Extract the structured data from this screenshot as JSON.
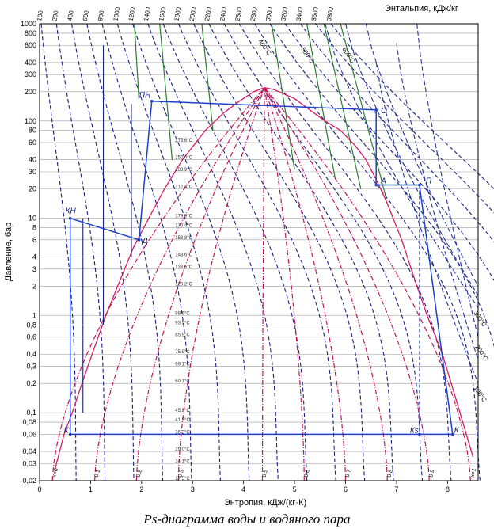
{
  "chart_data": {
    "type": "line",
    "title": "Ps-диаграмма воды и водяного пара",
    "xlabel": "Энтропия, кДж/(кг·К)",
    "ylabel": "Давление, бар",
    "top_axis_label": "Энтальпия, кДж/кг",
    "xlim": [
      0,
      8.6
    ],
    "ylim": [
      0.02,
      1000
    ],
    "y_scale": "log",
    "x_ticks": [
      "0",
      "1",
      "2",
      "3",
      "4",
      "5",
      "6",
      "7",
      "8"
    ],
    "y_ticks": [
      {
        "v": 1000,
        "label": "1000"
      },
      {
        "v": 800,
        "label": "800"
      },
      {
        "v": 600,
        "label": "600"
      },
      {
        "v": 400,
        "label": "400"
      },
      {
        "v": 300,
        "label": "300"
      },
      {
        "v": 200,
        "label": "200"
      },
      {
        "v": 100,
        "label": "100"
      },
      {
        "v": 80,
        "label": "80"
      },
      {
        "v": 60,
        "label": "60"
      },
      {
        "v": 40,
        "label": "40"
      },
      {
        "v": 30,
        "label": "30"
      },
      {
        "v": 20,
        "label": "20"
      },
      {
        "v": 10,
        "label": "10"
      },
      {
        "v": 8,
        "label": "8"
      },
      {
        "v": 6,
        "label": "6"
      },
      {
        "v": 4,
        "label": "4"
      },
      {
        "v": 3,
        "label": "3"
      },
      {
        "v": 2,
        "label": "2"
      },
      {
        "v": 1,
        "label": "1"
      },
      {
        "v": 0.8,
        "label": "0,8"
      },
      {
        "v": 0.6,
        "label": "0,6"
      },
      {
        "v": 0.4,
        "label": "0,4"
      },
      {
        "v": 0.3,
        "label": "0,3"
      },
      {
        "v": 0.2,
        "label": "0,2"
      },
      {
        "v": 0.1,
        "label": "0,1"
      },
      {
        "v": 0.08,
        "label": "0,08"
      },
      {
        "v": 0.06,
        "label": "0,06"
      },
      {
        "v": 0.04,
        "label": "0,04"
      },
      {
        "v": 0.03,
        "label": "0,03"
      },
      {
        "v": 0.02,
        "label": "0,02"
      }
    ],
    "enthalpy_ticks": [
      "100",
      "200",
      "400",
      "600",
      "800",
      "1000",
      "1200",
      "1400",
      "1600",
      "1800",
      "2000",
      "2200",
      "2400",
      "2600",
      "2800",
      "3000",
      "3200",
      "3400",
      "3600",
      "3800"
    ],
    "saturation_curve": {
      "liquid_s": [
        0.3,
        0.48,
        0.64,
        0.83,
        1.03,
        1.3,
        1.53,
        1.84,
        2.14,
        2.45,
        2.8,
        3.25,
        3.6,
        3.92,
        4.2,
        4.41
      ],
      "liquid_p": [
        0.026,
        0.06,
        0.1,
        0.2,
        0.4,
        1,
        2,
        5,
        10,
        20,
        40,
        80,
        120,
        160,
        200,
        220.6
      ],
      "vapor_s": [
        4.41,
        4.6,
        5.0,
        5.3,
        5.6,
        5.9,
        6.2,
        6.4,
        6.6,
        6.8,
        7.1,
        7.4,
        7.6,
        7.9,
        8.2,
        8.5
      ],
      "vapor_p": [
        220.6,
        210,
        170,
        130,
        100,
        80,
        55,
        40,
        25,
        15,
        6,
        2,
        1,
        0.4,
        0.12,
        0.035
      ]
    },
    "saturation_temperatures": [
      {
        "p": 60,
        "label": "275,6°C"
      },
      {
        "p": 40,
        "label": "250,4°C"
      },
      {
        "p": 30,
        "label": "233,9°C"
      },
      {
        "p": 20,
        "label": "212,4°C"
      },
      {
        "p": 10,
        "label": "179,9°C"
      },
      {
        "p": 8,
        "label": "170,4°C"
      },
      {
        "p": 6,
        "label": "158,8°C"
      },
      {
        "p": 4,
        "label": "143,6°C"
      },
      {
        "p": 3,
        "label": "133,5°C"
      },
      {
        "p": 2,
        "label": "120,2°C"
      },
      {
        "p": 1,
        "label": "99,6°C"
      },
      {
        "p": 0.8,
        "label": "93,5°C"
      },
      {
        "p": 0.6,
        "label": "85,9°C"
      },
      {
        "p": 0.4,
        "label": "75,9°C"
      },
      {
        "p": 0.3,
        "label": "69,1°C"
      },
      {
        "p": 0.2,
        "label": "60,1°C"
      },
      {
        "p": 0.1,
        "label": "45,8°C"
      },
      {
        "p": 0.08,
        "label": "41,5°C"
      },
      {
        "p": 0.06,
        "label": "36,2°C"
      },
      {
        "p": 0.04,
        "label": "29,0°C"
      },
      {
        "p": 0.03,
        "label": "24,1°C"
      },
      {
        "p": 0.02,
        "label": "17,5°C"
      }
    ],
    "dryness_lines": [
      {
        "label": "x=0",
        "s_bottom": 0.25
      },
      {
        "label": "0,1",
        "s_bottom": 1.08
      },
      {
        "label": "0,2",
        "s_bottom": 1.9
      },
      {
        "label": "0,3",
        "s_bottom": 2.72
      },
      {
        "label": "0,5",
        "s_bottom": 4.37
      },
      {
        "label": "0,6",
        "s_bottom": 5.19
      },
      {
        "label": "0,7",
        "s_bottom": 6.0
      },
      {
        "label": "0,8",
        "s_bottom": 6.82
      },
      {
        "label": "0,9",
        "s_bottom": 7.64
      },
      {
        "label": "x=1",
        "s_bottom": 8.45
      }
    ],
    "superheat_isotherms": [
      "300°C",
      "200°C",
      "100°C",
      "400°C",
      "500°C",
      "600°C"
    ],
    "cycle": {
      "points": [
        {
          "name": "ПН",
          "s": 2.2,
          "p": 160
        },
        {
          "name": "О",
          "s": 6.6,
          "p": 130
        },
        {
          "name": "А",
          "s": 6.6,
          "p": 22
        },
        {
          "name": "П",
          "s": 7.45,
          "p": 22
        },
        {
          "name": "К",
          "s": 8.1,
          "p": 0.06
        },
        {
          "name": "Кs",
          "s": 7.45,
          "p": 0.06
        },
        {
          "name": "К'",
          "s": 0.6,
          "p": 0.06
        },
        {
          "name": "КН",
          "s": 0.6,
          "p": 10
        },
        {
          "name": "Д",
          "s": 1.95,
          "p": 6
        }
      ],
      "path": [
        "К'",
        "КН",
        "Д",
        "ПН",
        "О",
        "А",
        "П",
        "К",
        "К'"
      ]
    }
  },
  "caption": "Ps-диаграмма воды и водяного пара"
}
